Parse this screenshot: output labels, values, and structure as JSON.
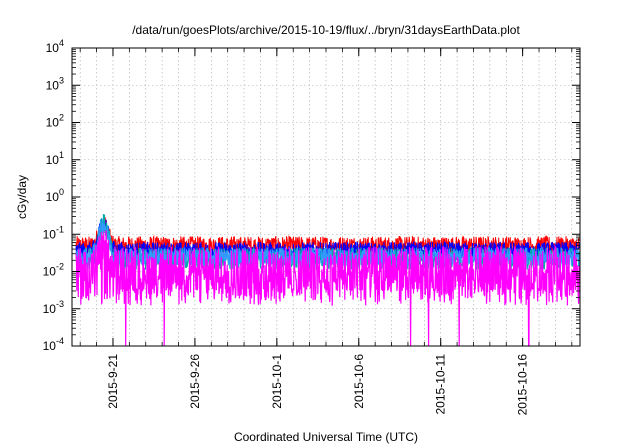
{
  "chart_data": {
    "type": "line",
    "title": "/data/run/goesPlots/archive/2015-10-19/flux/../bryn/31daysEarthData.plot",
    "xlabel": "Coordinated Universal Time (UTC)",
    "ylabel": "cGy/day",
    "yscale": "log",
    "ylim": [
      0.0001,
      10000
    ],
    "y_ticks": [
      {
        "value": 0.0001,
        "mantissa": "10",
        "exponent": "-4"
      },
      {
        "value": 0.001,
        "mantissa": "10",
        "exponent": "-3"
      },
      {
        "value": 0.01,
        "mantissa": "10",
        "exponent": "-2"
      },
      {
        "value": 0.1,
        "mantissa": "10",
        "exponent": "-1"
      },
      {
        "value": 1,
        "mantissa": "10",
        "exponent": "0"
      },
      {
        "value": 10,
        "mantissa": "10",
        "exponent": "1"
      },
      {
        "value": 100,
        "mantissa": "10",
        "exponent": "2"
      },
      {
        "value": 1000,
        "mantissa": "10",
        "exponent": "3"
      },
      {
        "value": 10000,
        "mantissa": "10",
        "exponent": "4"
      }
    ],
    "xlim": [
      "2015-09-18T12:00",
      "2015-10-19T12:00"
    ],
    "x_ticks": [
      {
        "date": "2015-09-21",
        "label": "2015-9-21"
      },
      {
        "date": "2015-09-26",
        "label": "2015-9-26"
      },
      {
        "date": "2015-10-01",
        "label": "2015-10-1"
      },
      {
        "date": "2015-10-06",
        "label": "2015-10-6"
      },
      {
        "date": "2015-10-11",
        "label": "2015-10-11"
      },
      {
        "date": "2015-10-16",
        "label": "2015-10-16"
      }
    ],
    "grid": true,
    "legend": "none",
    "series": [
      {
        "color": "#ff0000",
        "level": 0.05,
        "spread": 0.25
      },
      {
        "color": "#0000ff",
        "level": 0.035,
        "spread": 0.25
      },
      {
        "color": "#00aaaa",
        "level": 0.022,
        "spread": 0.3
      },
      {
        "color": "#3399ff",
        "level": 0.025,
        "spread": 0.25
      },
      {
        "color": "#ff00ff",
        "level": 0.012,
        "spread": 0.6
      }
    ],
    "event_peak": {
      "x": "2015-09-20T10:00",
      "y": 0.2
    },
    "dropouts": [
      "2015-09-21T19:00",
      "2015-09-24T03:00",
      "2015-10-02T00:00",
      "2015-10-09T04:00",
      "2015-10-10T06:00",
      "2015-10-11T06:00",
      "2015-10-12T03:00",
      "2015-10-16T09:00"
    ]
  }
}
